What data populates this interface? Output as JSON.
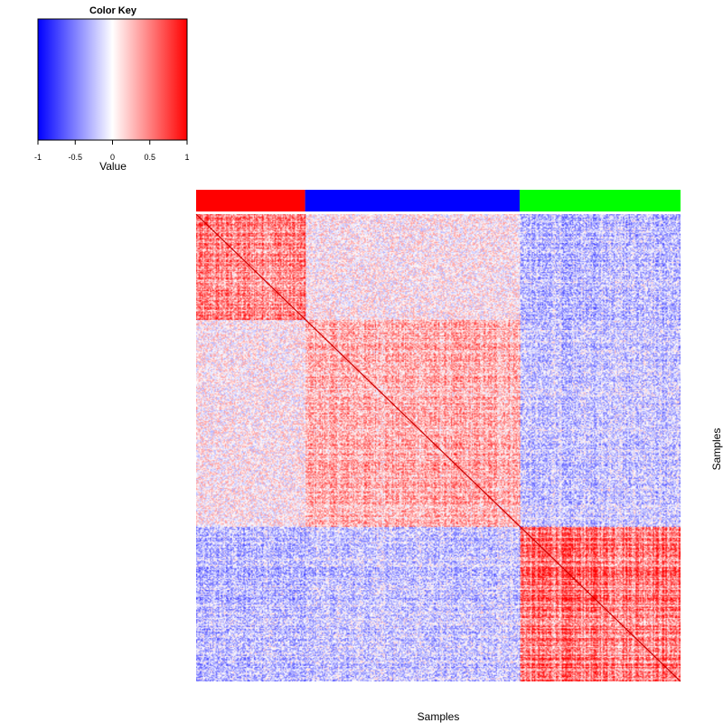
{
  "chart_data": {
    "type": "heatmap",
    "color_key": {
      "title": "Color Key",
      "label": "Value",
      "ticks": [
        "-1",
        "-0.5",
        "0",
        "0.5",
        "1"
      ],
      "range": [
        -1,
        1
      ],
      "colors": {
        "low": "#0000ff",
        "mid": "#ffffff",
        "high": "#ff0000"
      }
    },
    "xlabel": "Samples",
    "ylabel": "Samples",
    "groups": [
      {
        "color": "#ff0000",
        "fraction": 0.225
      },
      {
        "color": "#0000ff",
        "fraction": 0.443
      },
      {
        "color": "#00ff00",
        "fraction": 0.332
      }
    ],
    "block_means": [
      [
        0.45,
        0.05,
        -0.25
      ],
      [
        0.05,
        0.3,
        -0.2
      ],
      [
        -0.25,
        -0.2,
        0.55
      ]
    ],
    "diagonal_value": 1,
    "symmetric": true,
    "grid": false
  }
}
